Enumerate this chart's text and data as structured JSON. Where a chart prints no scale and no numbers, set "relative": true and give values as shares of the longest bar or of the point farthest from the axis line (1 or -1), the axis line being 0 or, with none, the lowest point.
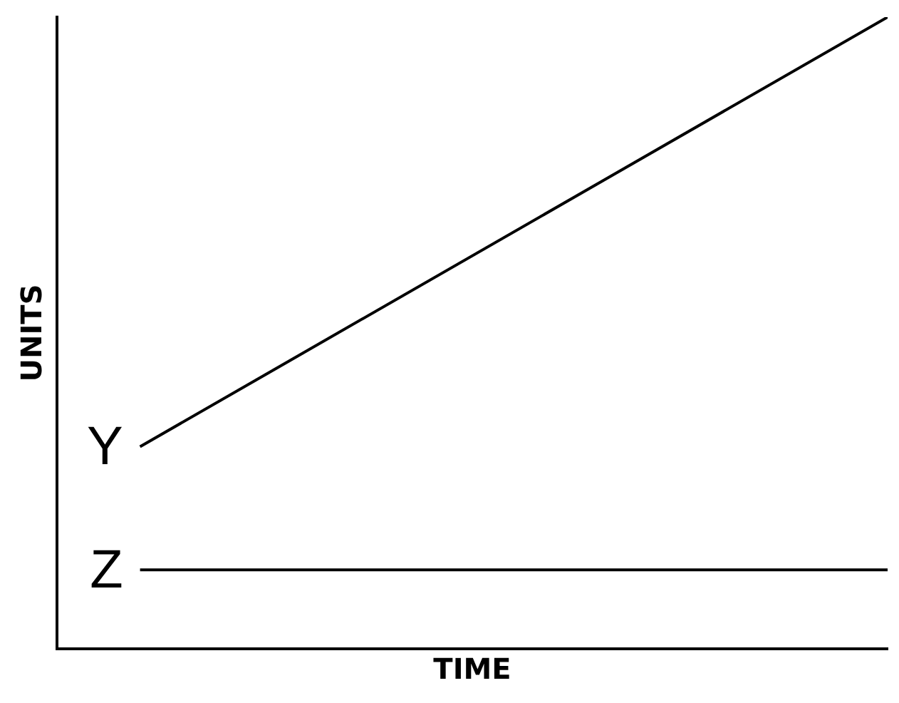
{
  "chart_data": {
    "type": "line",
    "relative": true,
    "xlabel": "TIME",
    "ylabel": "UNITS",
    "categories": [
      null,
      null,
      null,
      null,
      null,
      null,
      null,
      null,
      null,
      null,
      null
    ],
    "series": [
      {
        "name": "Y",
        "color": "#000000",
        "values": [
          null,
          0.32,
          null,
          null,
          null,
          null,
          null,
          null,
          null,
          null,
          1
        ]
      },
      {
        "name": "Z",
        "color": "#000000",
        "values": [
          null,
          0.125,
          null,
          null,
          null,
          null,
          null,
          null,
          null,
          null,
          0.125
        ]
      }
    ],
    "legend": false,
    "grid": false,
    "marker": "none",
    "line_style": "solid"
  }
}
